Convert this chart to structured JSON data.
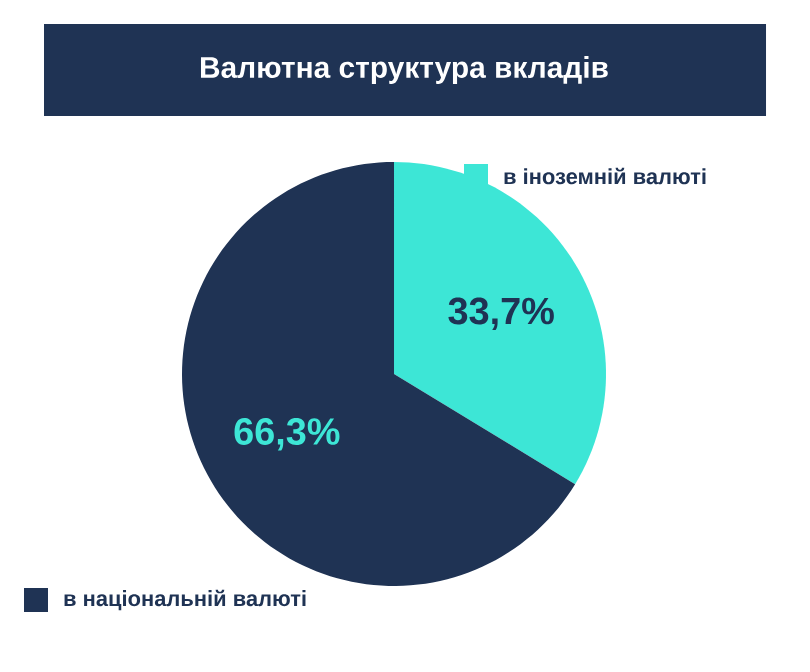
{
  "chart_data": {
    "type": "pie",
    "title": "Валютна структура вкладів",
    "categories": [
      "в іноземній валюті",
      "в національній валюті"
    ],
    "values": [
      33.7,
      66.3
    ],
    "colors": [
      "#3de6d6",
      "#1f3354"
    ],
    "value_labels": [
      "33,7%",
      "66,3%"
    ],
    "legend": "bottom left"
  }
}
